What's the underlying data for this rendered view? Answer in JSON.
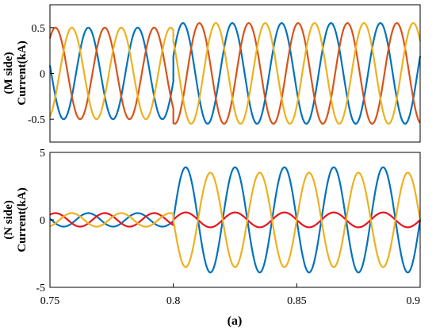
{
  "chart_data": [
    {
      "type": "line",
      "title": "",
      "ylabel_lines": [
        "(M side)",
        "Current(kA)"
      ],
      "xlim": [
        0.75,
        0.9
      ],
      "ylim": [
        -0.75,
        0.75
      ],
      "yticks": [
        0.5,
        0,
        -0.5
      ],
      "ytick_labels": [
        "0.5",
        "0",
        "-0.5"
      ],
      "xticks": [],
      "grid": false,
      "frequency_hz": 50,
      "series": [
        {
          "color": "#0072bd",
          "segments": [
            {
              "x_start": 0.75,
              "x_end": 0.8,
              "amplitude": 0.5,
              "phase_deg": -10
            },
            {
              "x_start": 0.8,
              "x_end": 0.9,
              "amplitude": 0.55,
              "phase_deg": 20
            }
          ]
        },
        {
          "color": "#d95319",
          "segments": [
            {
              "x_start": 0.75,
              "x_end": 0.8,
              "amplitude": 0.5,
              "phase_deg": -130
            },
            {
              "x_start": 0.8,
              "x_end": 0.9,
              "amplitude": 0.55,
              "phase_deg": -100
            }
          ]
        },
        {
          "color": "#edb120",
          "segments": [
            {
              "x_start": 0.75,
              "x_end": 0.8,
              "amplitude": 0.5,
              "phase_deg": 110
            },
            {
              "x_start": 0.8,
              "x_end": 0.9,
              "amplitude": 0.55,
              "phase_deg": 140
            }
          ]
        }
      ]
    },
    {
      "type": "line",
      "title": "",
      "ylabel_lines": [
        "(N side)",
        "Current(kA)"
      ],
      "xlabel": "(a)",
      "xlim": [
        0.75,
        0.9
      ],
      "ylim": [
        -5,
        5
      ],
      "yticks": [
        5,
        0,
        -5
      ],
      "ytick_labels": [
        "5",
        "0",
        "-5"
      ],
      "xticks": [
        0.75,
        0.8,
        0.85,
        0.9
      ],
      "xtick_labels": [
        "0.75",
        "0.8",
        "0.85",
        "0.9"
      ],
      "grid": false,
      "frequency_hz": 50,
      "series": [
        {
          "color": "#0072bd",
          "segments": [
            {
              "x_start": 0.75,
              "x_end": 0.8,
              "amplitude": 0.5,
              "phase_deg": -10
            },
            {
              "x_start": 0.8,
              "x_end": 0.9,
              "amplitude": 3.9,
              "phase_deg": 0
            }
          ]
        },
        {
          "color": "#e8141e",
          "segments": [
            {
              "x_start": 0.75,
              "x_end": 0.8,
              "amplitude": 0.5,
              "phase_deg": -130
            },
            {
              "x_start": 0.8,
              "x_end": 0.9,
              "amplitude": 0.55,
              "phase_deg": 0
            }
          ]
        },
        {
          "color": "#edb120",
          "segments": [
            {
              "x_start": 0.75,
              "x_end": 0.8,
              "amplitude": 0.5,
              "phase_deg": 110
            },
            {
              "x_start": 0.8,
              "x_end": 0.9,
              "amplitude": 3.5,
              "phase_deg": 180
            }
          ]
        }
      ]
    }
  ]
}
